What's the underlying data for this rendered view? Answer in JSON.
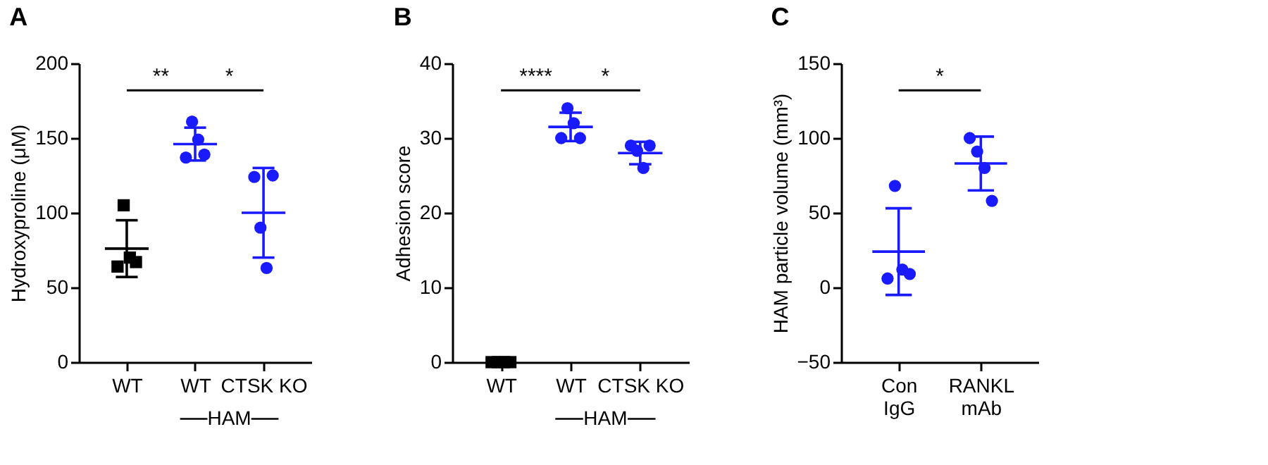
{
  "chart_data": [
    {
      "type": "scatter",
      "title": "A",
      "ylabel": "Hydroxyproline (μM)",
      "xlabel": "HAM",
      "categories": [
        "WT",
        "WT",
        "CTSK KO"
      ],
      "ylim": [
        0,
        200
      ],
      "yticks": [
        0,
        50,
        100,
        150,
        200
      ],
      "annotations": [
        "**",
        "*"
      ],
      "series": [
        {
          "color": "#000000",
          "marker": "square",
          "values": [
            64,
            null,
            null
          ]
        },
        {
          "color": "#000000",
          "marker": "square",
          "values": [
            105,
            null,
            null
          ]
        },
        {
          "color": "#000000",
          "marker": "square",
          "values": [
            70,
            null,
            null
          ]
        },
        {
          "color": "#000000",
          "marker": "square",
          "values": [
            67,
            null,
            null
          ]
        },
        {
          "color": "#1a1aff",
          "marker": "circle",
          "values": [
            null,
            137,
            124
          ]
        },
        {
          "color": "#1a1aff",
          "marker": "circle",
          "values": [
            null,
            161,
            90
          ]
        },
        {
          "color": "#1a1aff",
          "marker": "circle",
          "values": [
            null,
            149,
            63
          ]
        },
        {
          "color": "#1a1aff",
          "marker": "circle",
          "values": [
            null,
            139,
            125
          ]
        },
        {
          "type": "box",
          "colors": [
            "#000000",
            "#1a1aff",
            "#1a1aff"
          ],
          "boxes": [
            {
              "low": 57,
              "q1": 76,
              "median": 76,
              "q3": 76,
              "high": 95
            },
            {
              "low": 135,
              "q1": 146,
              "median": 146,
              "q3": 146,
              "high": 157
            },
            {
              "low": 70,
              "q1": 100,
              "median": 100,
              "q3": 100,
              "high": 130
            }
          ]
        }
      ]
    },
    {
      "type": "scatter",
      "title": "B",
      "ylabel": "Adhesion score",
      "xlabel": "HAM",
      "categories": [
        "WT",
        "WT",
        "CTSK KO"
      ],
      "ylim": [
        0,
        40
      ],
      "yticks": [
        0,
        10,
        20,
        30,
        40
      ],
      "annotations": [
        "****",
        "*"
      ],
      "series": [
        {
          "color": "#000000",
          "marker": "square",
          "values": [
            0,
            null,
            null
          ]
        },
        {
          "color": "#000000",
          "marker": "square",
          "values": [
            0,
            null,
            null
          ]
        },
        {
          "color": "#000000",
          "marker": "square",
          "values": [
            0,
            null,
            null
          ]
        },
        {
          "color": "#000000",
          "marker": "square",
          "values": [
            0,
            null,
            null
          ]
        },
        {
          "color": "#1a1aff",
          "marker": "circle",
          "values": [
            null,
            30,
            29
          ]
        },
        {
          "color": "#1a1aff",
          "marker": "circle",
          "values": [
            null,
            34,
            28.3
          ]
        },
        {
          "color": "#1a1aff",
          "marker": "circle",
          "values": [
            null,
            32,
            26
          ]
        },
        {
          "color": "#1a1aff",
          "marker": "circle",
          "values": [
            null,
            30,
            29
          ]
        },
        {
          "type": "box",
          "colors": [
            null,
            "#1a1aff",
            "#1a1aff"
          ],
          "boxes": [
            null,
            {
              "low": 29.6,
              "q1": 31.5,
              "median": 31.5,
              "q3": 31.5,
              "high": 33.4
            },
            {
              "low": 26.5,
              "q1": 28,
              "median": 28,
              "q3": 28,
              "high": 29.5
            }
          ]
        }
      ]
    },
    {
      "type": "scatter",
      "title": "C",
      "ylabel": "HAM particle volume (mm³)",
      "categories": [
        "Con IgG",
        "RANKL mAb"
      ],
      "ylim": [
        -50,
        150
      ],
      "yticks": [
        -50,
        0,
        50,
        100,
        150
      ],
      "annotations": [
        "*"
      ],
      "series": [
        {
          "color": "#1a1aff",
          "marker": "circle",
          "values": [
            6,
            100
          ]
        },
        {
          "color": "#1a1aff",
          "marker": "circle",
          "values": [
            68,
            91
          ]
        },
        {
          "color": "#1a1aff",
          "marker": "circle",
          "values": [
            12,
            80
          ]
        },
        {
          "color": "#1a1aff",
          "marker": "circle",
          "values": [
            9,
            58
          ]
        },
        {
          "type": "box",
          "colors": [
            "#1a1aff",
            "#1a1aff"
          ],
          "boxes": [
            {
              "low": -5,
              "q1": 24,
              "median": 24,
              "q3": 24,
              "high": 53
            },
            {
              "low": 65,
              "q1": 83,
              "median": 83,
              "q3": 83,
              "high": 101
            }
          ]
        }
      ]
    }
  ]
}
